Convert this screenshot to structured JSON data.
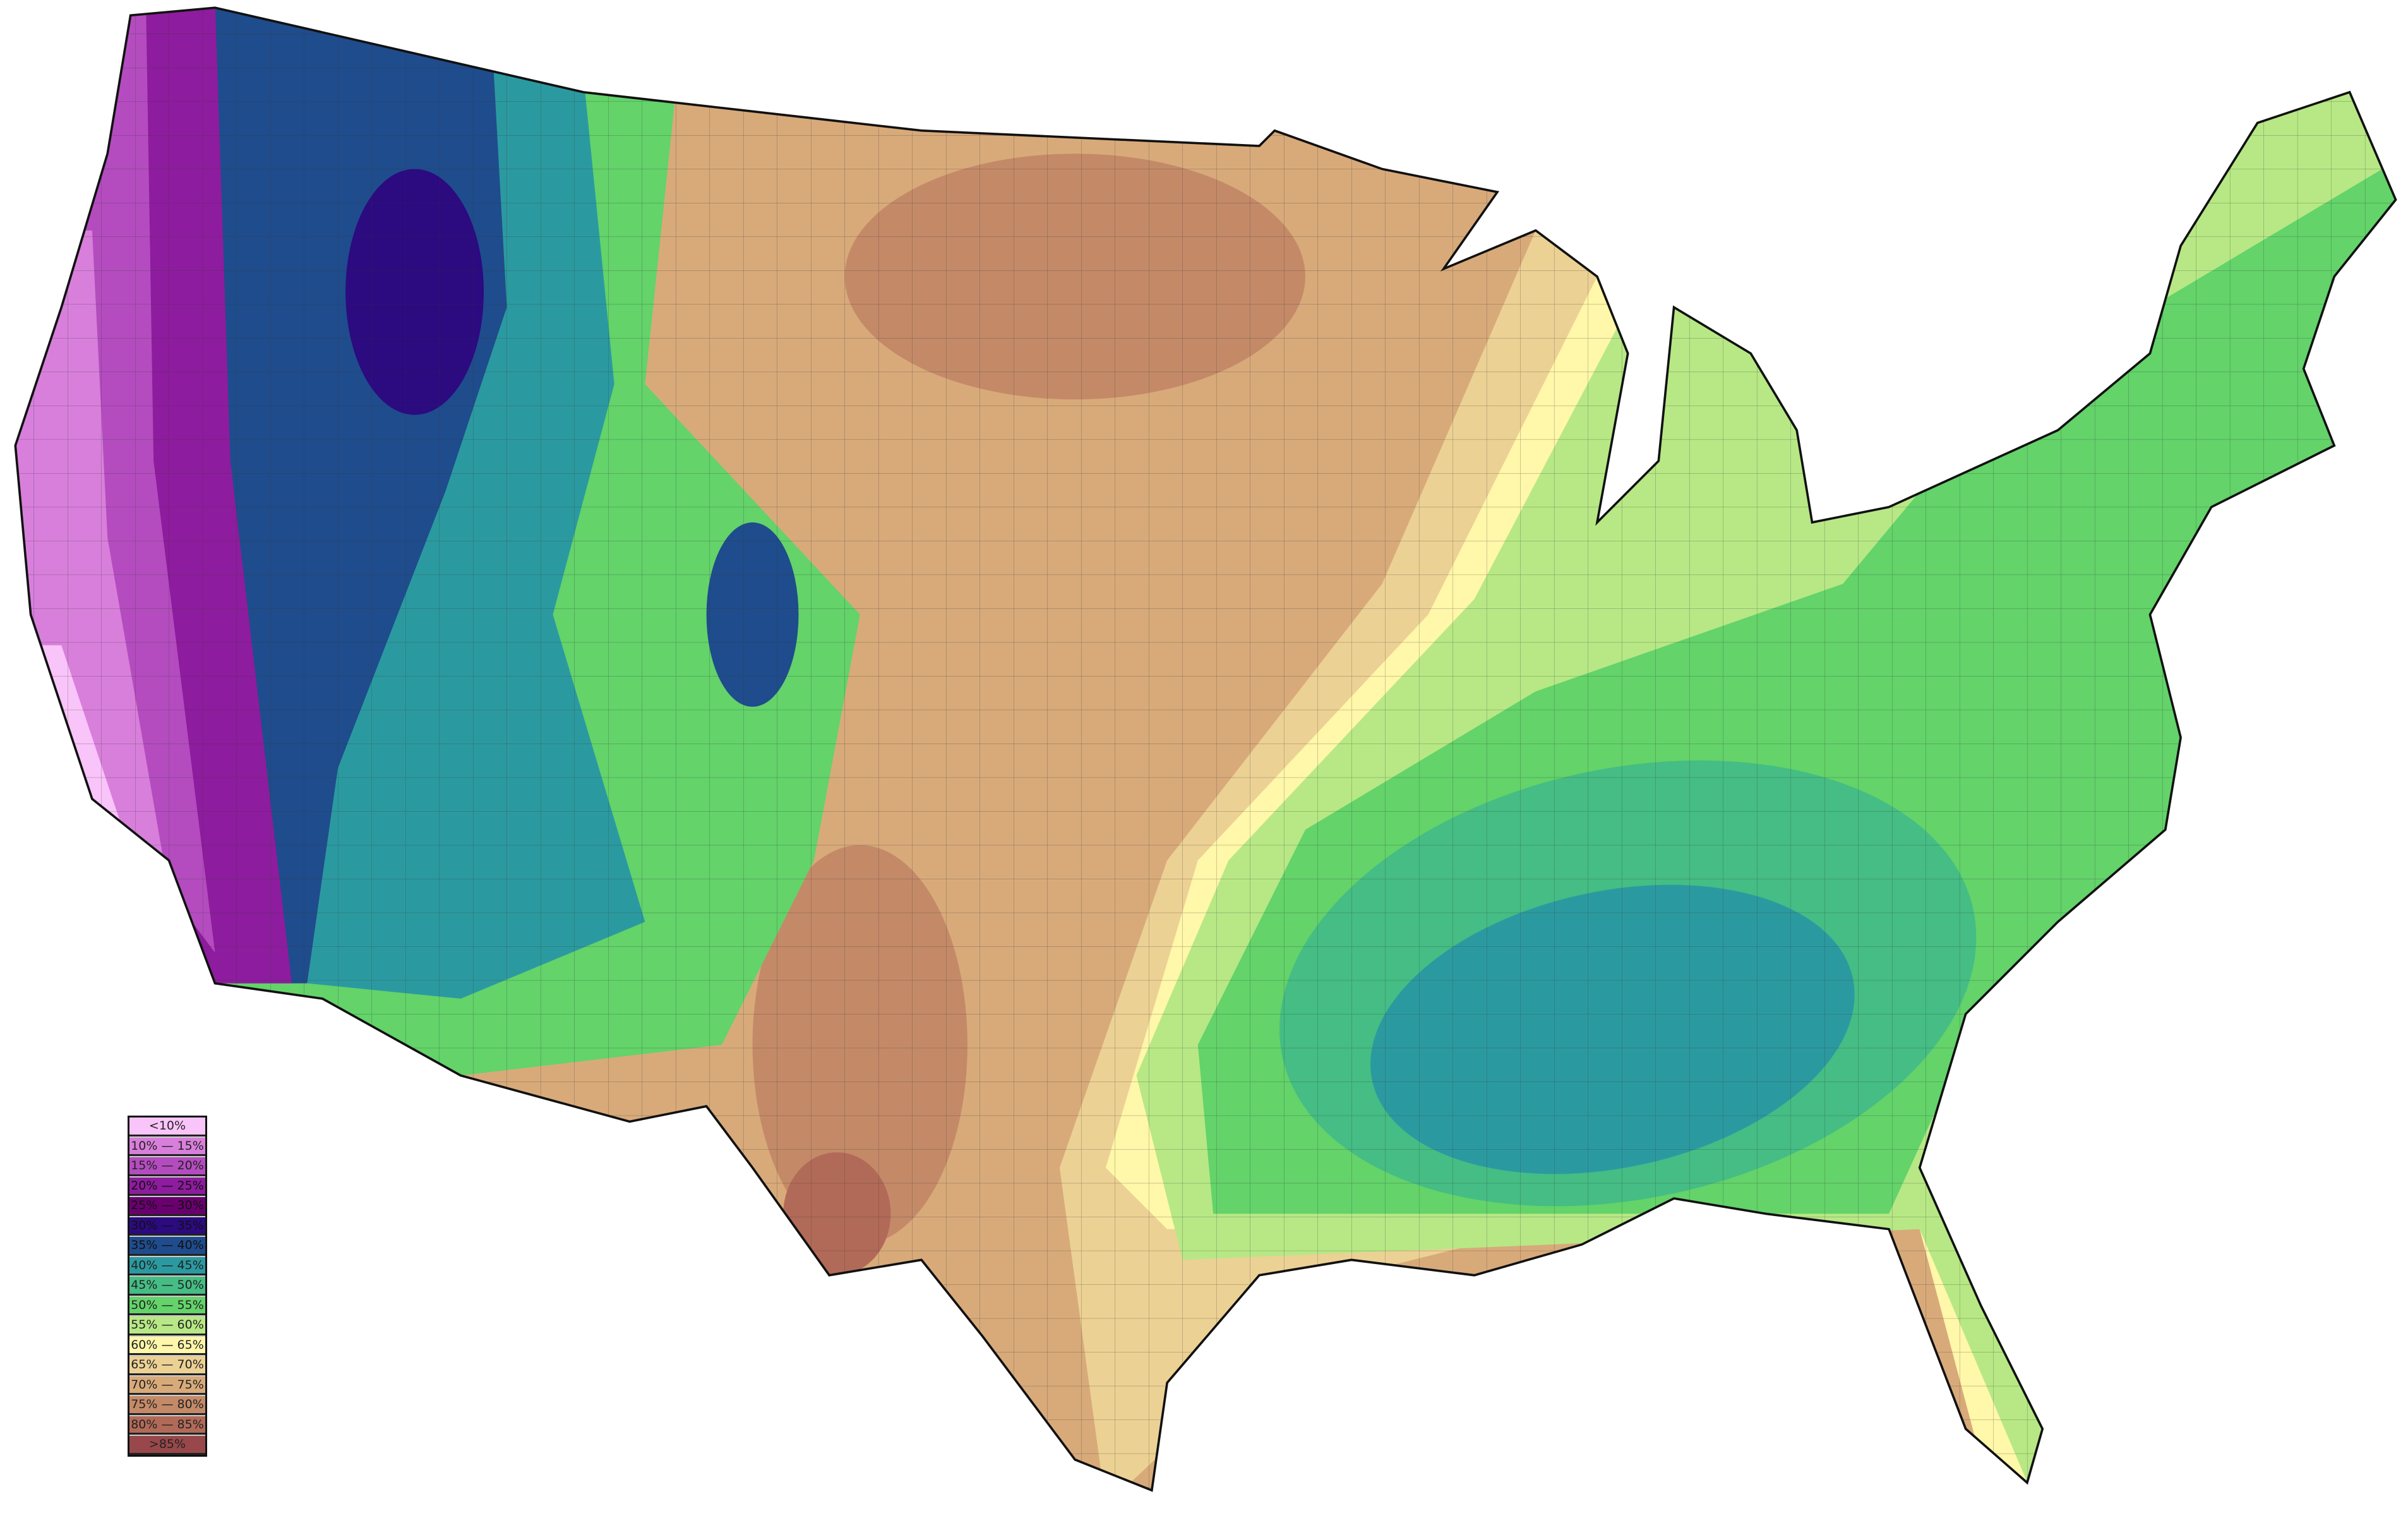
{
  "legend": {
    "items": [
      {
        "label": "<10%",
        "color": "#f9c4f9"
      },
      {
        "label": "10% — 15%",
        "color": "#d87fdb"
      },
      {
        "label": "15% — 20%",
        "color": "#b44cbf"
      },
      {
        "label": "20% — 25%",
        "color": "#8e1c9e"
      },
      {
        "label": "25% — 30%",
        "color": "#6a0070"
      },
      {
        "label": "30% — 35%",
        "color": "#2c0a80"
      },
      {
        "label": "35% — 40%",
        "color": "#1f4c8c"
      },
      {
        "label": "40% — 45%",
        "color": "#2b9aa0"
      },
      {
        "label": "45% — 50%",
        "color": "#45bd84"
      },
      {
        "label": "50% — 55%",
        "color": "#63d36a"
      },
      {
        "label": "55% — 60%",
        "color": "#b7e885"
      },
      {
        "label": "60% — 65%",
        "color": "#fff7a9"
      },
      {
        "label": "65% — 70%",
        "color": "#ecd194"
      },
      {
        "label": "70% — 75%",
        "color": "#d8aa7a"
      },
      {
        "label": "75% — 80%",
        "color": "#c48a68"
      },
      {
        "label": "80% — 85%",
        "color": "#b26a58"
      },
      {
        "label": ">85%",
        "color": "#98484a"
      }
    ]
  },
  "map": {
    "region": "Contiguous United States",
    "boundaries": "county"
  }
}
